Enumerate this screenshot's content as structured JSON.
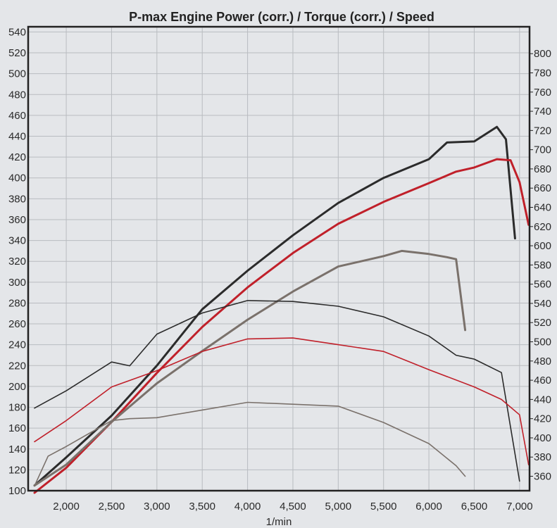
{
  "chart_data": {
    "type": "line",
    "title": "P-max Engine Power (corr.) / Torque (corr.) / Speed",
    "xlabel": "1/min",
    "ylabel": "",
    "y2label": "",
    "xlim": [
      1580,
      7110
    ],
    "ylim": [
      100,
      545
    ],
    "y2lim": [
      345,
      828
    ],
    "grid": true,
    "x_ticks": [
      2000,
      2500,
      3000,
      3500,
      4000,
      4500,
      5000,
      5500,
      6000,
      6500,
      7000
    ],
    "x_tick_labels": [
      "2,000",
      "2,500",
      "3,000",
      "3,500",
      "4,000",
      "4,500",
      "5,000",
      "5,500",
      "6,000",
      "6,500",
      "7,000"
    ],
    "y_ticks": [
      100,
      120,
      140,
      160,
      180,
      200,
      220,
      240,
      260,
      280,
      300,
      320,
      340,
      360,
      380,
      400,
      420,
      440,
      460,
      480,
      500,
      520,
      540
    ],
    "y2_ticks": [
      360,
      380,
      400,
      420,
      440,
      460,
      480,
      500,
      520,
      540,
      560,
      580,
      600,
      620,
      640,
      660,
      680,
      700,
      720,
      740,
      760,
      780,
      800
    ],
    "colors": {
      "black": "#2b2b2b",
      "red": "#c0202a",
      "gray": "#7a716b",
      "grid": "#b9bcc0",
      "frame": "#222222"
    },
    "series": [
      {
        "axis": "left",
        "style": "thick",
        "color": "black",
        "x": [
          1650,
          2000,
          2500,
          3000,
          3500,
          4000,
          4500,
          5000,
          5500,
          6000,
          6200,
          6500,
          6750,
          6850,
          6950
        ],
        "y": [
          105,
          132,
          172,
          220,
          274,
          311,
          345,
          376,
          400,
          418,
          434,
          435,
          449,
          437,
          342
        ]
      },
      {
        "axis": "left",
        "style": "thick",
        "color": "red",
        "x": [
          1650,
          2000,
          2500,
          3000,
          3500,
          4000,
          4500,
          5000,
          5500,
          6000,
          6300,
          6500,
          6750,
          6900,
          7000,
          7100
        ],
        "y": [
          98,
          122,
          166,
          213,
          257,
          295,
          328,
          356,
          377,
          395,
          406,
          410,
          418,
          417,
          396,
          355
        ]
      },
      {
        "axis": "left",
        "style": "thick",
        "color": "gray",
        "x": [
          1650,
          2000,
          2500,
          3000,
          3500,
          4000,
          4500,
          5000,
          5500,
          5700,
          6000,
          6200,
          6300,
          6400
        ],
        "y": [
          105,
          125,
          166,
          203,
          234,
          264,
          291,
          315,
          325,
          330,
          327,
          324,
          322,
          254
        ]
      },
      {
        "axis": "right",
        "style": "thin",
        "color": "black",
        "x": [
          1650,
          2000,
          2500,
          2700,
          3000,
          3500,
          4000,
          4500,
          5000,
          5500,
          6000,
          6300,
          6500,
          6800,
          7000
        ],
        "y": [
          431,
          449,
          479,
          475,
          508,
          530,
          543,
          542,
          537,
          526,
          506,
          486,
          482,
          468,
          355
        ]
      },
      {
        "axis": "right",
        "style": "thin",
        "color": "red",
        "x": [
          1650,
          2000,
          2500,
          3000,
          3500,
          4000,
          4500,
          5000,
          5500,
          6000,
          6500,
          6800,
          7000,
          7100
        ],
        "y": [
          396,
          418,
          453,
          470,
          490,
          503,
          504,
          497,
          490,
          471,
          453,
          440,
          424,
          372
        ]
      },
      {
        "axis": "right",
        "style": "thin",
        "color": "gray",
        "x": [
          1650,
          1800,
          2000,
          2500,
          2700,
          3000,
          3500,
          4000,
          4500,
          5000,
          5500,
          6000,
          6300,
          6400
        ],
        "y": [
          350,
          381,
          391,
          418,
          420,
          421,
          429,
          437,
          435,
          433,
          416,
          394,
          371,
          360
        ]
      }
    ]
  }
}
